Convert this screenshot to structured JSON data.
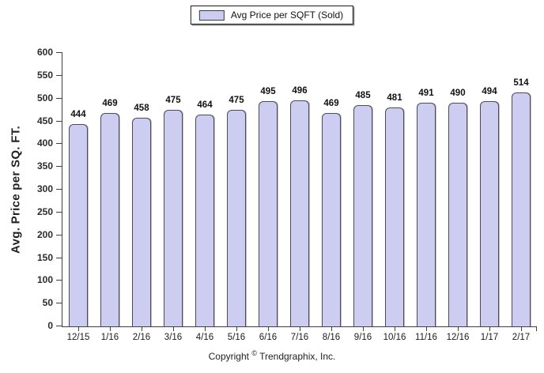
{
  "legend": {
    "label": "Avg Price per SQFT (Sold)"
  },
  "footer": {
    "prefix": "Copyright",
    "symbol": "©",
    "suffix": "Trendgraphix, Inc."
  },
  "chart_data": {
    "type": "bar",
    "title": "",
    "xlabel": "",
    "ylabel": "Avg. Price per SQ. FT.",
    "categories": [
      "12/15",
      "1/16",
      "2/16",
      "3/16",
      "4/16",
      "5/16",
      "6/16",
      "7/16",
      "8/16",
      "9/16",
      "10/16",
      "11/16",
      "12/16",
      "1/17",
      "2/17"
    ],
    "values": [
      444,
      469,
      458,
      475,
      464,
      475,
      495,
      496,
      469,
      485,
      481,
      491,
      490,
      494,
      514
    ],
    "ylim": [
      0,
      600
    ],
    "ytick_step": 50,
    "grid": false,
    "legend_position": "top-center",
    "legend_entries": [
      "Avg Price per SQFT (Sold)"
    ],
    "colors": {
      "bar_fill": "#cdcdf2",
      "bar_border": "#4a4a5c",
      "axis": "#404040",
      "text": "#1a1a1a"
    }
  }
}
